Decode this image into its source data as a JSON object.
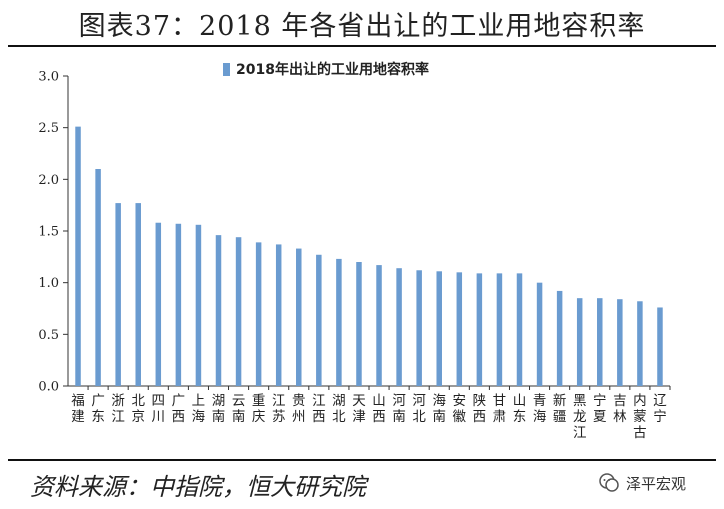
{
  "title": "图表37：2018 年各省出让的工业用地容积率",
  "source": "资料来源：中指院，恒大研究院",
  "watermark": "泽平宏观",
  "chart_data": {
    "type": "bar",
    "legend": "2018年出让的工业用地容积率",
    "bar_color": "#6a9bd0",
    "ylim": [
      0,
      3.0
    ],
    "yticks": [
      "0.0",
      "0.5",
      "1.0",
      "1.5",
      "2.0",
      "2.5",
      "3.0"
    ],
    "categories": [
      "福建",
      "广东",
      "浙江",
      "北京",
      "四川",
      "广西",
      "上海",
      "湖南",
      "云南",
      "重庆",
      "江苏",
      "贵州",
      "江西",
      "湖北",
      "天津",
      "山西",
      "河南",
      "河北",
      "海南",
      "安徽",
      "陕西",
      "甘肃",
      "山东",
      "青海",
      "新疆",
      "黑龙江",
      "宁夏",
      "吉林",
      "内蒙古",
      "辽宁"
    ],
    "values": [
      2.51,
      2.1,
      1.77,
      1.77,
      1.58,
      1.57,
      1.56,
      1.46,
      1.44,
      1.39,
      1.37,
      1.33,
      1.27,
      1.23,
      1.2,
      1.17,
      1.14,
      1.12,
      1.11,
      1.1,
      1.09,
      1.09,
      1.09,
      1.0,
      0.92,
      0.85,
      0.85,
      0.84,
      0.82,
      0.76
    ]
  }
}
